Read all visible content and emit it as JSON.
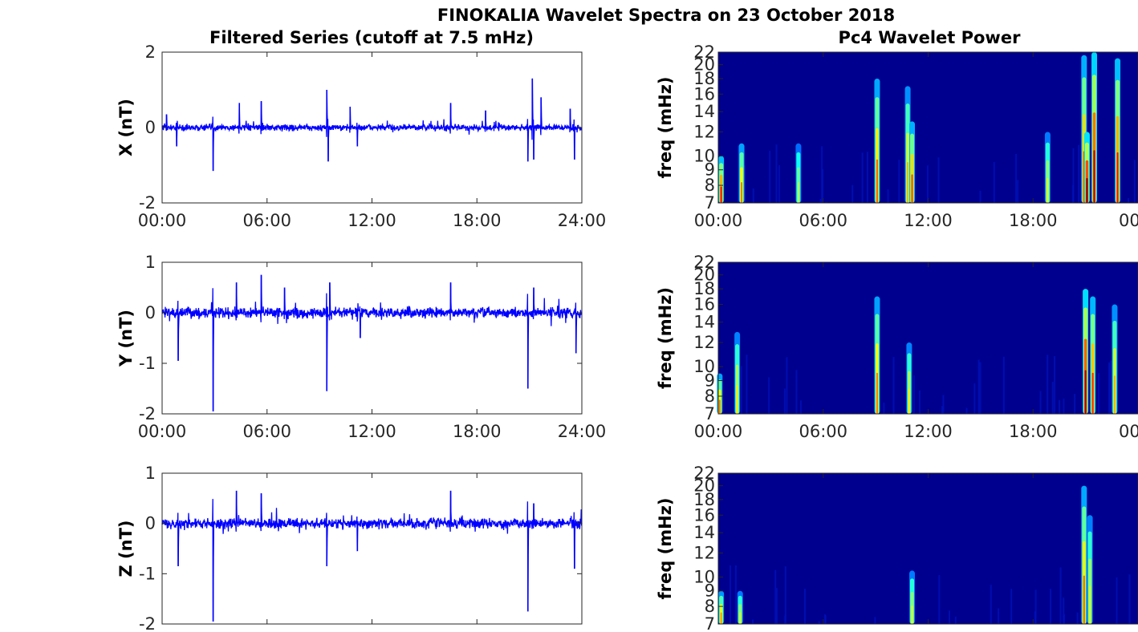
{
  "figure": {
    "title": "FINOKALIA Wavelet Spectra on 23 October 2018",
    "left_title": "Filtered Series (cutoff at 7.5 mHz)",
    "right_title": "Pc4 Wavelet Power"
  },
  "chart_data": [
    {
      "type": "line",
      "panel": "X",
      "ylabel": "X (nT)",
      "xlabel": "",
      "ylim": [
        -2,
        2
      ],
      "yticks": [
        "-2",
        "0",
        "2"
      ],
      "xticks": [
        "00:00",
        "06:00",
        "12:00",
        "18:00",
        "24:00"
      ],
      "xlim_hours": [
        0,
        24
      ],
      "grid": false,
      "color": "#0000ff",
      "noise_band_nT": 0.12,
      "peaks": [
        {
          "t": "00:15",
          "y": 0.35
        },
        {
          "t": "00:50",
          "y": -0.5
        },
        {
          "t": "02:55",
          "y": -1.15
        },
        {
          "t": "04:25",
          "y": 0.65
        },
        {
          "t": "05:40",
          "y": 0.7
        },
        {
          "t": "09:25",
          "y": 1.0
        },
        {
          "t": "09:30",
          "y": -0.9
        },
        {
          "t": "10:45",
          "y": 0.55
        },
        {
          "t": "11:10",
          "y": -0.5
        },
        {
          "t": "16:30",
          "y": 0.65
        },
        {
          "t": "18:30",
          "y": 0.45
        },
        {
          "t": "20:55",
          "y": -0.9
        },
        {
          "t": "21:10",
          "y": 1.3
        },
        {
          "t": "21:15",
          "y": -0.85
        },
        {
          "t": "21:40",
          "y": 0.8
        },
        {
          "t": "23:20",
          "y": 0.5
        },
        {
          "t": "23:35",
          "y": -0.85
        }
      ]
    },
    {
      "type": "line",
      "panel": "Y",
      "ylabel": "Y (nT)",
      "xlabel": "",
      "ylim": [
        -2,
        1
      ],
      "yticks": [
        "-2",
        "-1",
        "0",
        "1"
      ],
      "xticks": [
        "00:00",
        "06:00",
        "12:00",
        "18:00",
        "24:00"
      ],
      "xlim_hours": [
        0,
        24
      ],
      "grid": false,
      "color": "#0000ff",
      "noise_band_nT": 0.15,
      "peaks": [
        {
          "t": "00:55",
          "y": -0.95
        },
        {
          "t": "02:55",
          "y": -1.95
        },
        {
          "t": "04:15",
          "y": 0.6
        },
        {
          "t": "05:40",
          "y": 0.75
        },
        {
          "t": "07:00",
          "y": 0.5
        },
        {
          "t": "09:25",
          "y": -1.55
        },
        {
          "t": "09:35",
          "y": 0.6
        },
        {
          "t": "11:20",
          "y": -0.5
        },
        {
          "t": "16:30",
          "y": 0.6
        },
        {
          "t": "20:55",
          "y": -1.5
        },
        {
          "t": "21:15",
          "y": 0.5
        },
        {
          "t": "23:40",
          "y": -0.8
        }
      ]
    },
    {
      "type": "line",
      "panel": "Z",
      "ylabel": "Z (nT)",
      "xlabel": "",
      "ylim": [
        -2,
        1
      ],
      "yticks": [
        "-2",
        "-1",
        "0",
        "1"
      ],
      "xticks": [],
      "xlim_hours": [
        0,
        24
      ],
      "grid": false,
      "color": "#0000ff",
      "noise_band_nT": 0.14,
      "peaks": [
        {
          "t": "00:55",
          "y": -0.85
        },
        {
          "t": "02:55",
          "y": -1.95
        },
        {
          "t": "04:15",
          "y": 0.65
        },
        {
          "t": "05:40",
          "y": 0.6
        },
        {
          "t": "09:25",
          "y": -0.85
        },
        {
          "t": "11:10",
          "y": -0.55
        },
        {
          "t": "16:30",
          "y": 0.65
        },
        {
          "t": "20:55",
          "y": -1.75
        },
        {
          "t": "21:15",
          "y": 0.4
        },
        {
          "t": "23:35",
          "y": -0.9
        }
      ]
    },
    {
      "type": "heatmap",
      "panel": "X",
      "ylabel": "freq (mHz)",
      "yticks": [
        "7",
        "8",
        "9",
        "10",
        "12",
        "14",
        "16",
        "18",
        "20",
        "22"
      ],
      "ylim_mHz": [
        7,
        22
      ],
      "yscale": "log",
      "xticks": [
        "00:00",
        "06:00",
        "12:00",
        "18:00",
        "00"
      ],
      "xlim_hours": [
        0,
        24
      ],
      "colormap": "jet",
      "background": "#00008f",
      "streaks": [
        {
          "t": "00:10",
          "top_mHz": 10,
          "power": 0.75
        },
        {
          "t": "01:20",
          "top_mHz": 11,
          "power": 0.55
        },
        {
          "t": "04:35",
          "top_mHz": 11,
          "power": 0.2
        },
        {
          "t": "09:05",
          "top_mHz": 18,
          "power": 0.6
        },
        {
          "t": "10:50",
          "top_mHz": 17,
          "power": 0.45
        },
        {
          "t": "11:05",
          "top_mHz": 13,
          "power": 0.65
        },
        {
          "t": "18:50",
          "top_mHz": 12,
          "power": 0.3
        },
        {
          "t": "20:55",
          "top_mHz": 21.5,
          "power": 0.65
        },
        {
          "t": "21:05",
          "top_mHz": 12,
          "power": 1.0
        },
        {
          "t": "21:30",
          "top_mHz": 22,
          "power": 0.9
        },
        {
          "t": "22:50",
          "top_mHz": 21,
          "power": 0.75
        }
      ]
    },
    {
      "type": "heatmap",
      "panel": "Y",
      "ylabel": "freq (mHz)",
      "yticks": [
        "7",
        "8",
        "9",
        "10",
        "12",
        "14",
        "16",
        "18",
        "20",
        "22"
      ],
      "ylim_mHz": [
        7,
        22
      ],
      "yscale": "log",
      "xticks": [
        "00:00",
        "06:00",
        "12:00",
        "18:00",
        "00"
      ],
      "xlim_hours": [
        0,
        24
      ],
      "colormap": "jet",
      "background": "#00008f",
      "streaks": [
        {
          "t": "00:05",
          "top_mHz": 9.5,
          "power": 0.55
        },
        {
          "t": "01:05",
          "top_mHz": 13,
          "power": 0.35
        },
        {
          "t": "09:05",
          "top_mHz": 17,
          "power": 0.55
        },
        {
          "t": "10:55",
          "top_mHz": 12,
          "power": 0.35
        },
        {
          "t": "21:00",
          "top_mHz": 18,
          "power": 0.95
        },
        {
          "t": "21:25",
          "top_mHz": 17,
          "power": 0.7
        },
        {
          "t": "22:40",
          "top_mHz": 16,
          "power": 0.45
        }
      ]
    },
    {
      "type": "heatmap",
      "panel": "Z",
      "ylabel": "freq (mHz)",
      "yticks": [
        "7",
        "8",
        "9",
        "10",
        "12",
        "14",
        "16",
        "18",
        "20",
        "22"
      ],
      "ylim_mHz": [
        7,
        22
      ],
      "yscale": "log",
      "xticks": [],
      "xlim_hours": [
        0,
        24
      ],
      "colormap": "jet",
      "background": "#00008f",
      "streaks": [
        {
          "t": "00:10",
          "top_mHz": 9,
          "power": 0.5
        },
        {
          "t": "01:15",
          "top_mHz": 9,
          "power": 0.3
        },
        {
          "t": "11:05",
          "top_mHz": 10.5,
          "power": 0.3
        },
        {
          "t": "20:55",
          "top_mHz": 20,
          "power": 0.6
        },
        {
          "t": "21:15",
          "top_mHz": 16,
          "power": 0.35
        }
      ]
    }
  ]
}
